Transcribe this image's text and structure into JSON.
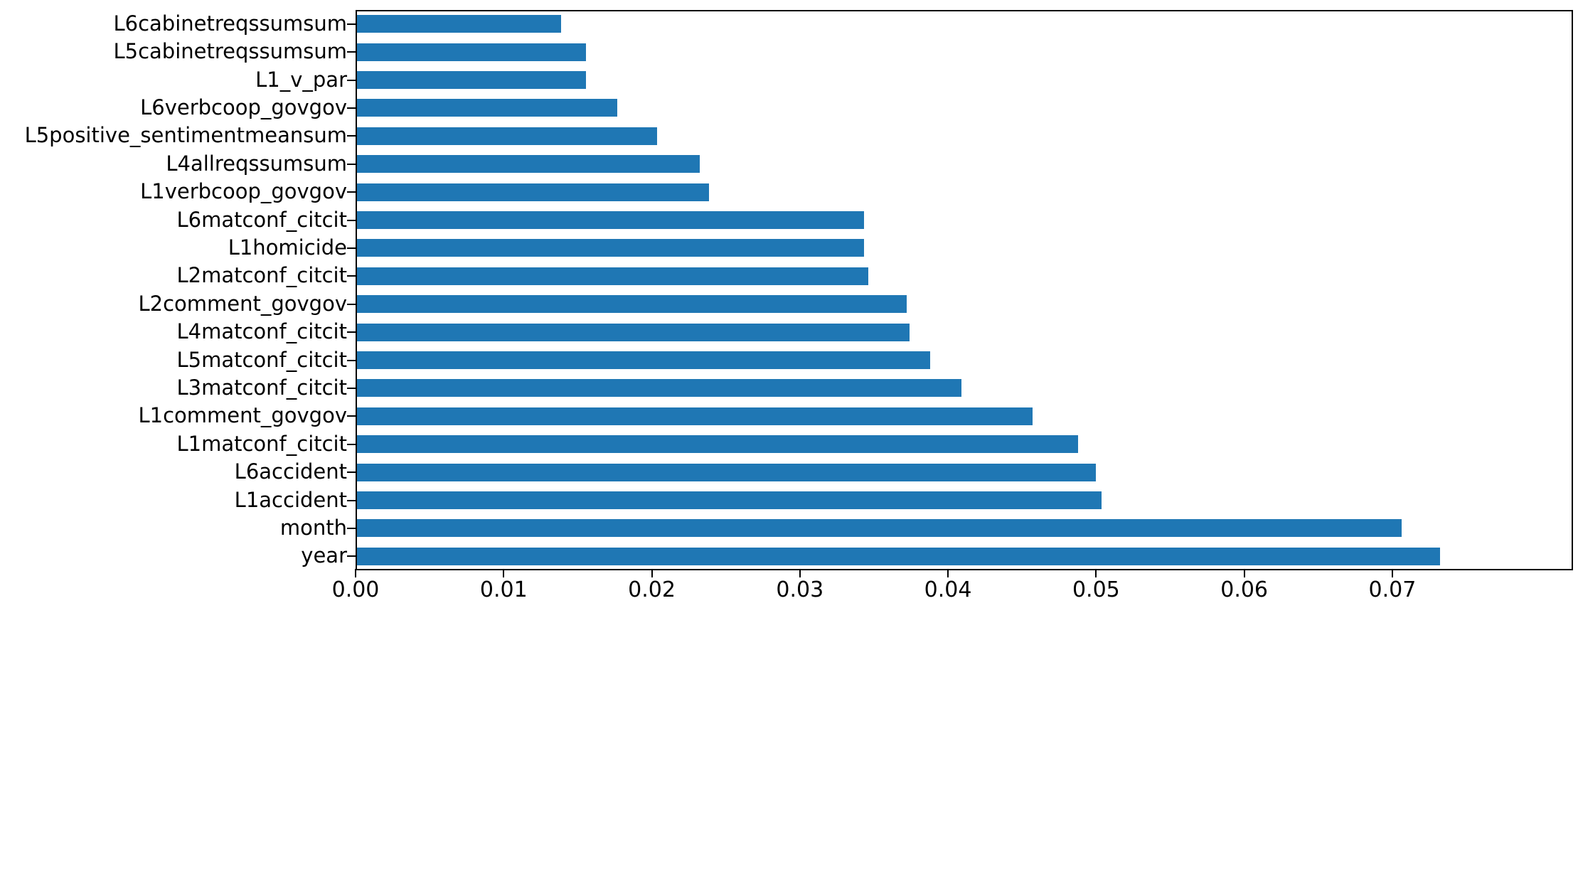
{
  "chart_data": {
    "type": "bar",
    "orientation": "horizontal",
    "title": "",
    "xlabel": "",
    "ylabel": "",
    "bar_color": "#1f77b4",
    "xlim": [
      0,
      0.0822
    ],
    "x_ticks": [
      "0.00",
      "0.01",
      "0.02",
      "0.03",
      "0.04",
      "0.05",
      "0.06",
      "0.07"
    ],
    "x_tick_values": [
      0.0,
      0.01,
      0.02,
      0.03,
      0.04,
      0.05,
      0.06,
      0.07
    ],
    "grid": false,
    "legend": "none",
    "categories_top_to_bottom": [
      "L6cabinetreqssumsum",
      "L5cabinetreqssumsum",
      "L1_v_par",
      "L6verbcoop_govgov",
      "L5positive_sentimentmeansum",
      "L4allreqssumsum",
      "L1verbcoop_govgov",
      "L6matconf_citcit",
      "L1homicide",
      "L2matconf_citcit",
      "L2comment_govgov",
      "L4matconf_citcit",
      "L5matconf_citcit",
      "L3matconf_citcit",
      "L1comment_govgov",
      "L1matconf_citcit",
      "L6accident",
      "L1accident",
      "month",
      "year"
    ],
    "values_top_to_bottom": [
      0.0138,
      0.0155,
      0.0155,
      0.0176,
      0.0203,
      0.0232,
      0.0238,
      0.0343,
      0.0343,
      0.0346,
      0.0372,
      0.0374,
      0.0388,
      0.0409,
      0.0457,
      0.0488,
      0.05,
      0.0504,
      0.0707,
      0.0733
    ]
  }
}
